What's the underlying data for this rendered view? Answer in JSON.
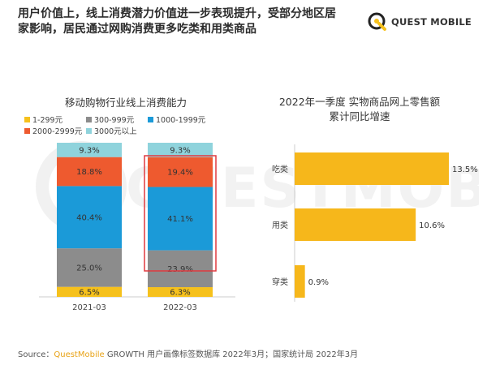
{
  "header": {
    "headline": "用户价值上，线上消费潜力价值进一步表现提升，受部分地区居家影响，居民通过网购消费更多吃类和用类商品",
    "logo_text": "QUEST MOBILE",
    "watermark_text": "QUESTMOBILE"
  },
  "colors": {
    "yellow": "#f6c11c",
    "gray": "#8c8c8c",
    "blue": "#1b9ad8",
    "red": "#ee5a2f",
    "teal": "#8fd3dc",
    "hbar": "#f6b71b",
    "highlight": "#e0393e"
  },
  "chart_data": [
    {
      "type": "bar",
      "stacked": true,
      "title": "移动购物行业线上消费能力",
      "categories": [
        "2021-03",
        "2022-03"
      ],
      "series": [
        {
          "name": "1-299元",
          "color": "#f6c11c",
          "values": [
            6.5,
            6.3
          ],
          "labels": [
            "6.5%",
            "6.3%"
          ]
        },
        {
          "name": "300-999元",
          "color": "#8c8c8c",
          "values": [
            25.0,
            23.9
          ],
          "labels": [
            "25.0%",
            "23.9%"
          ]
        },
        {
          "name": "1000-1999元",
          "color": "#1b9ad8",
          "values": [
            40.4,
            41.1
          ],
          "labels": [
            "40.4%",
            "41.1%"
          ]
        },
        {
          "name": "2000-2999元",
          "color": "#ee5a2f",
          "values": [
            18.8,
            19.4
          ],
          "labels": [
            "18.8%",
            "19.4%"
          ]
        },
        {
          "name": "3000元以上",
          "color": "#8fd3dc",
          "values": [
            9.3,
            9.3
          ],
          "labels": [
            "9.3%",
            "9.3%"
          ]
        }
      ],
      "highlighted_category": "2022-03",
      "legend_position": "top",
      "ylim": [
        0,
        100
      ],
      "grid": false
    },
    {
      "type": "bar",
      "orientation": "horizontal",
      "title": "2022年一季度 实物商品网上零售额",
      "subtitle": "累计同比增速",
      "categories": [
        "吃类",
        "用类",
        "穿类"
      ],
      "values": [
        13.5,
        10.6,
        0.9
      ],
      "labels": [
        "13.5%",
        "10.6%",
        "0.9%"
      ],
      "xlim": [
        0,
        13.5
      ],
      "grid": false
    }
  ],
  "footer": {
    "source_prefix": "Source：",
    "source_brand": "QuestMobile",
    "source_rest": " GROWTH 用户画像标签数据库 2022年3月；国家统计局 2022年3月"
  }
}
